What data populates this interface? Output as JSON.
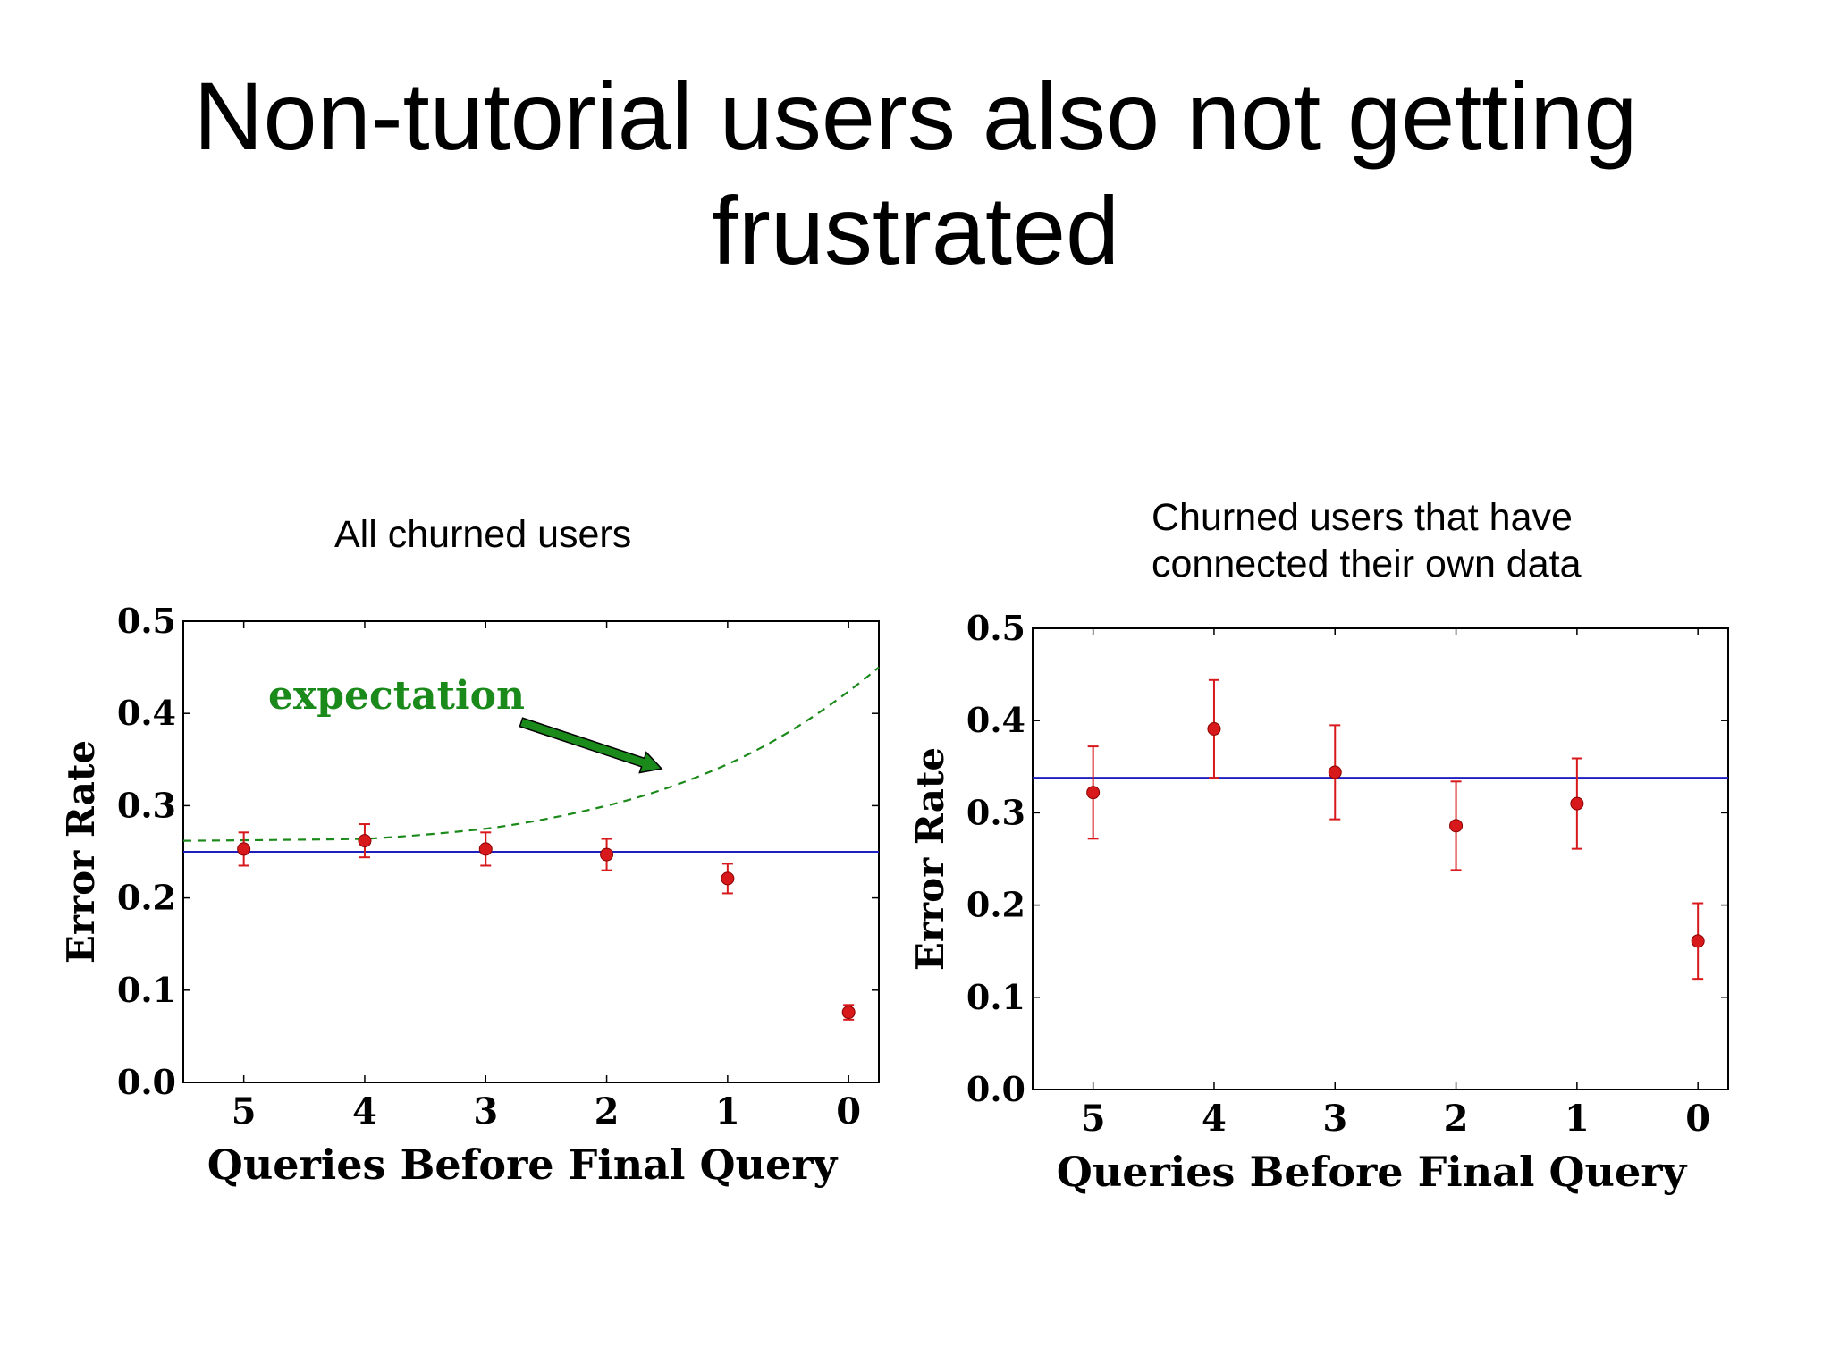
{
  "slide": {
    "title": "Non-tutorial users also not getting frustrated"
  },
  "panels": [
    {
      "subtitle": "All churned users"
    },
    {
      "subtitle": "Churned users that have\nconnected their own data"
    }
  ],
  "chart_data": [
    {
      "type": "scatter",
      "title": "All churned users",
      "xlabel": "Queries Before Final Query",
      "ylabel": "Error Rate",
      "x": [
        5,
        4,
        3,
        2,
        1,
        0
      ],
      "xlim": [
        5.5,
        -0.25
      ],
      "ylim": [
        0.0,
        0.5
      ],
      "yticks": [
        "0.0",
        "0.1",
        "0.2",
        "0.3",
        "0.4",
        "0.5"
      ],
      "xticks": [
        "5",
        "4",
        "3",
        "2",
        "1",
        "0"
      ],
      "grid": false,
      "series": [
        {
          "values": [
            0.253,
            0.262,
            0.253,
            0.247,
            0.221,
            0.076
          ],
          "err": [
            0.018,
            0.018,
            0.018,
            0.017,
            0.016,
            0.008
          ],
          "color": "#d7191c"
        }
      ],
      "hline": {
        "value": 0.25,
        "color": "#1f1fbf"
      },
      "expectation": {
        "label": "expectation",
        "color": "#1a8a1a",
        "x": [
          5.5,
          4,
          3,
          2,
          1,
          -0.25
        ],
        "values": [
          0.262,
          0.264,
          0.275,
          0.3,
          0.345,
          0.45
        ]
      }
    },
    {
      "type": "scatter",
      "title": "Churned users that have connected their own data",
      "xlabel": "Queries Before Final Query",
      "ylabel": "Error Rate",
      "x": [
        5,
        4,
        3,
        2,
        1,
        0
      ],
      "xlim": [
        5.5,
        -0.25
      ],
      "ylim": [
        0.0,
        0.5
      ],
      "yticks": [
        "0.0",
        "0.1",
        "0.2",
        "0.3",
        "0.4",
        "0.5"
      ],
      "xticks": [
        "5",
        "4",
        "3",
        "2",
        "1",
        "0"
      ],
      "grid": false,
      "series": [
        {
          "values": [
            0.322,
            0.391,
            0.344,
            0.286,
            0.31,
            0.161
          ],
          "err": [
            0.05,
            0.053,
            0.051,
            0.048,
            0.049,
            0.041
          ],
          "color": "#d7191c"
        }
      ],
      "hline": {
        "value": 0.338,
        "color": "#1f1fbf"
      }
    }
  ]
}
